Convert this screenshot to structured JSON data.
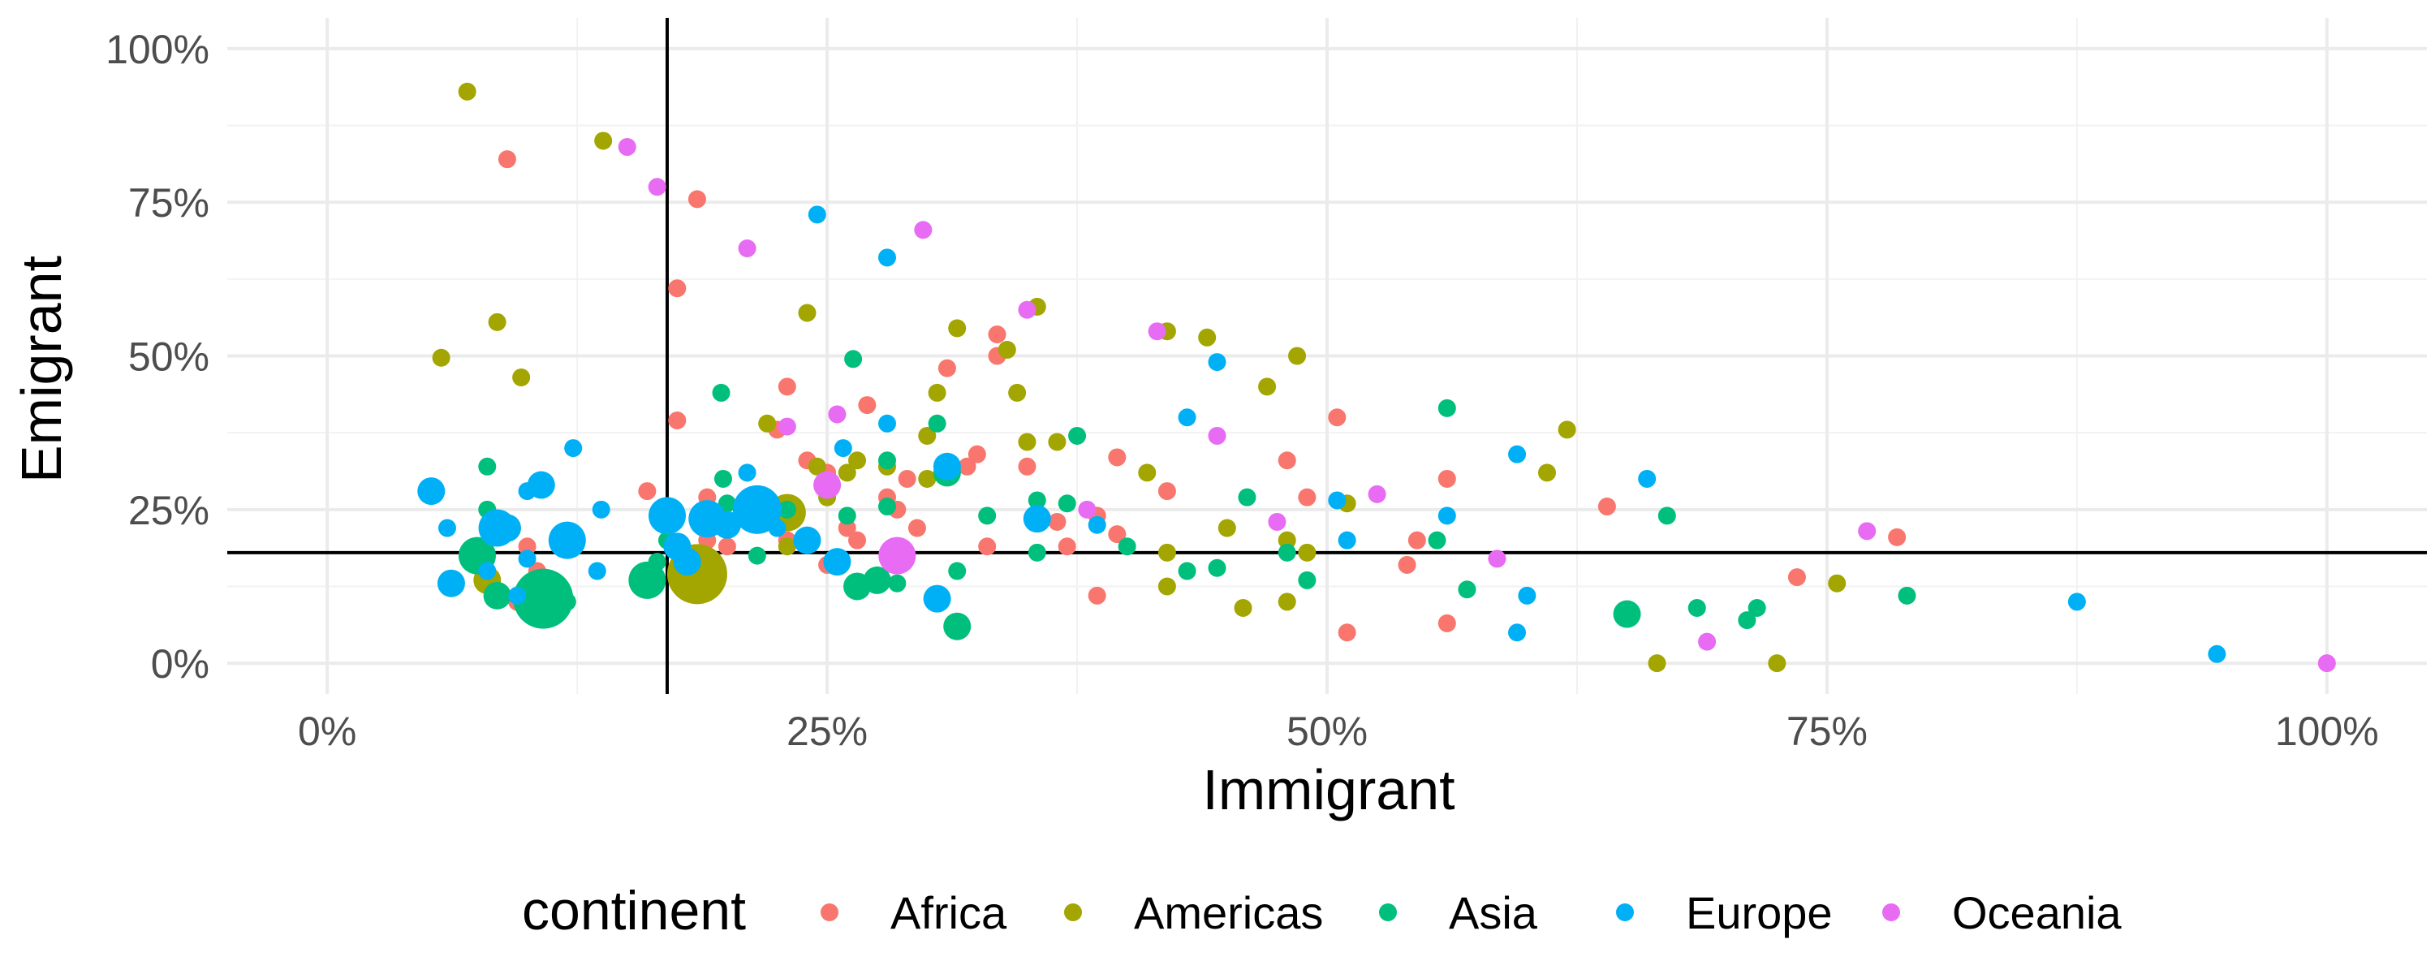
{
  "chart_data": {
    "type": "scatter",
    "xlabel": "Immigrant",
    "ylabel": "Emigrant",
    "xlim": [
      -0.05,
      1.05
    ],
    "ylim": [
      -0.05,
      1.05
    ],
    "x_ticks": [
      0,
      0.25,
      0.5,
      0.75,
      1.0
    ],
    "x_tick_labels": [
      "0%",
      "25%",
      "50%",
      "75%",
      "100%"
    ],
    "y_ticks": [
      0,
      0.25,
      0.5,
      0.75,
      1.0
    ],
    "y_tick_labels": [
      "0%",
      "25%",
      "50%",
      "75%",
      "100%"
    ],
    "grid": true,
    "reference_lines": {
      "vertical_x": 0.17,
      "horizontal_y": 0.18
    },
    "legend": {
      "title": "continent",
      "placement": "bottom",
      "entries": [
        {
          "name": "Africa",
          "color": "#F8766D"
        },
        {
          "name": "Americas",
          "color": "#A3A500"
        },
        {
          "name": "Asia",
          "color": "#00BF7D"
        },
        {
          "name": "Europe",
          "color": "#00B0F6"
        },
        {
          "name": "Oceania",
          "color": "#E76BF3"
        }
      ]
    },
    "series": [
      {
        "name": "Africa",
        "color": "#F8766D",
        "points": [
          [
            0.09,
            0.82,
            1
          ],
          [
            0.185,
            0.755,
            1
          ],
          [
            0.175,
            0.61,
            1
          ],
          [
            0.175,
            0.395,
            1
          ],
          [
            0.16,
            0.28,
            1
          ],
          [
            0.19,
            0.27,
            1
          ],
          [
            0.23,
            0.45,
            1
          ],
          [
            0.225,
            0.38,
            1
          ],
          [
            0.24,
            0.33,
            1
          ],
          [
            0.25,
            0.31,
            1
          ],
          [
            0.27,
            0.42,
            1
          ],
          [
            0.29,
            0.3,
            1
          ],
          [
            0.31,
            0.48,
            1
          ],
          [
            0.325,
            0.34,
            1
          ],
          [
            0.335,
            0.5,
            1
          ],
          [
            0.335,
            0.535,
            1
          ],
          [
            0.35,
            0.32,
            1
          ],
          [
            0.28,
            0.27,
            1
          ],
          [
            0.285,
            0.25,
            1
          ],
          [
            0.295,
            0.22,
            1
          ],
          [
            0.23,
            0.2,
            1
          ],
          [
            0.25,
            0.16,
            1
          ],
          [
            0.265,
            0.2,
            1
          ],
          [
            0.33,
            0.19,
            1
          ],
          [
            0.365,
            0.23,
            1
          ],
          [
            0.37,
            0.19,
            1
          ],
          [
            0.385,
            0.24,
            1
          ],
          [
            0.395,
            0.335,
            1
          ],
          [
            0.395,
            0.21,
            1
          ],
          [
            0.385,
            0.11,
            1
          ],
          [
            0.42,
            0.28,
            1
          ],
          [
            0.48,
            0.33,
            1
          ],
          [
            0.49,
            0.27,
            1
          ],
          [
            0.505,
            0.4,
            1
          ],
          [
            0.51,
            0.05,
            1
          ],
          [
            0.54,
            0.16,
            1
          ],
          [
            0.545,
            0.2,
            1
          ],
          [
            0.56,
            0.3,
            1
          ],
          [
            0.56,
            0.065,
            1
          ],
          [
            0.64,
            0.255,
            1
          ],
          [
            0.735,
            0.14,
            1
          ],
          [
            0.785,
            0.205,
            1
          ],
          [
            0.1,
            0.19,
            1
          ],
          [
            0.105,
            0.15,
            1
          ],
          [
            0.095,
            0.1,
            1
          ],
          [
            0.2,
            0.19,
            1
          ],
          [
            0.19,
            0.2,
            1
          ],
          [
            0.26,
            0.22,
            1
          ],
          [
            0.32,
            0.32,
            1
          ]
        ]
      },
      {
        "name": "Americas",
        "color": "#A3A500",
        "points": [
          [
            0.07,
            0.93,
            1
          ],
          [
            0.138,
            0.85,
            1
          ],
          [
            0.085,
            0.555,
            1
          ],
          [
            0.057,
            0.497,
            1
          ],
          [
            0.097,
            0.465,
            1
          ],
          [
            0.09,
            0.22,
            2
          ],
          [
            0.08,
            0.135,
            2
          ],
          [
            0.185,
            0.145,
            5
          ],
          [
            0.23,
            0.245,
            3
          ],
          [
            0.24,
            0.57,
            1
          ],
          [
            0.22,
            0.39,
            1
          ],
          [
            0.245,
            0.32,
            1
          ],
          [
            0.26,
            0.31,
            1
          ],
          [
            0.265,
            0.33,
            1
          ],
          [
            0.3,
            0.37,
            1
          ],
          [
            0.305,
            0.44,
            1
          ],
          [
            0.315,
            0.545,
            1
          ],
          [
            0.34,
            0.51,
            1
          ],
          [
            0.345,
            0.44,
            1
          ],
          [
            0.35,
            0.36,
            1
          ],
          [
            0.355,
            0.58,
            1
          ],
          [
            0.365,
            0.36,
            1
          ],
          [
            0.41,
            0.31,
            1
          ],
          [
            0.42,
            0.54,
            1
          ],
          [
            0.44,
            0.53,
            1
          ],
          [
            0.47,
            0.45,
            1
          ],
          [
            0.485,
            0.5,
            1
          ],
          [
            0.48,
            0.2,
            1
          ],
          [
            0.49,
            0.18,
            1
          ],
          [
            0.42,
            0.18,
            1
          ],
          [
            0.42,
            0.125,
            1
          ],
          [
            0.45,
            0.22,
            1
          ],
          [
            0.458,
            0.09,
            1
          ],
          [
            0.48,
            0.1,
            1
          ],
          [
            0.51,
            0.26,
            1
          ],
          [
            0.61,
            0.31,
            1
          ],
          [
            0.62,
            0.38,
            1
          ],
          [
            0.665,
            0.0,
            1
          ],
          [
            0.725,
            0.0,
            1
          ],
          [
            0.755,
            0.13,
            1
          ],
          [
            0.23,
            0.19,
            1
          ],
          [
            0.25,
            0.27,
            1
          ],
          [
            0.3,
            0.3,
            1
          ],
          [
            0.28,
            0.32,
            1
          ]
        ]
      },
      {
        "name": "Asia",
        "color": "#00BF7D",
        "points": [
          [
            0.08,
            0.32,
            1
          ],
          [
            0.08,
            0.25,
            1
          ],
          [
            0.075,
            0.175,
            3
          ],
          [
            0.085,
            0.11,
            2
          ],
          [
            0.108,
            0.105,
            5
          ],
          [
            0.12,
            0.1,
            1
          ],
          [
            0.16,
            0.135,
            3
          ],
          [
            0.165,
            0.165,
            1
          ],
          [
            0.17,
            0.2,
            1
          ],
          [
            0.198,
            0.3,
            1
          ],
          [
            0.197,
            0.44,
            1
          ],
          [
            0.2,
            0.26,
            1
          ],
          [
            0.215,
            0.175,
            1
          ],
          [
            0.23,
            0.25,
            1
          ],
          [
            0.26,
            0.24,
            1
          ],
          [
            0.263,
            0.495,
            1
          ],
          [
            0.265,
            0.125,
            2
          ],
          [
            0.275,
            0.135,
            2
          ],
          [
            0.285,
            0.13,
            1
          ],
          [
            0.28,
            0.255,
            1
          ],
          [
            0.28,
            0.33,
            1
          ],
          [
            0.305,
            0.39,
            1
          ],
          [
            0.31,
            0.31,
            2
          ],
          [
            0.315,
            0.06,
            2
          ],
          [
            0.315,
            0.15,
            1
          ],
          [
            0.33,
            0.24,
            1
          ],
          [
            0.355,
            0.18,
            1
          ],
          [
            0.355,
            0.265,
            1
          ],
          [
            0.37,
            0.26,
            1
          ],
          [
            0.375,
            0.37,
            1
          ],
          [
            0.4,
            0.19,
            1
          ],
          [
            0.43,
            0.15,
            1
          ],
          [
            0.445,
            0.155,
            1
          ],
          [
            0.46,
            0.27,
            1
          ],
          [
            0.48,
            0.18,
            1
          ],
          [
            0.49,
            0.135,
            1
          ],
          [
            0.555,
            0.2,
            1
          ],
          [
            0.56,
            0.415,
            1
          ],
          [
            0.57,
            0.12,
            1
          ],
          [
            0.65,
            0.08,
            2
          ],
          [
            0.67,
            0.24,
            1
          ],
          [
            0.685,
            0.09,
            1
          ],
          [
            0.71,
            0.07,
            1
          ],
          [
            0.715,
            0.09,
            1
          ],
          [
            0.79,
            0.11,
            1
          ]
        ]
      },
      {
        "name": "Europe",
        "color": "#00B0F6",
        "points": [
          [
            0.052,
            0.28,
            2
          ],
          [
            0.06,
            0.22,
            1
          ],
          [
            0.062,
            0.13,
            2
          ],
          [
            0.08,
            0.15,
            1
          ],
          [
            0.085,
            0.22,
            3
          ],
          [
            0.09,
            0.22,
            2
          ],
          [
            0.1,
            0.28,
            1
          ],
          [
            0.107,
            0.29,
            2
          ],
          [
            0.1,
            0.17,
            1
          ],
          [
            0.095,
            0.11,
            1
          ],
          [
            0.12,
            0.2,
            3
          ],
          [
            0.123,
            0.35,
            1
          ],
          [
            0.135,
            0.15,
            1
          ],
          [
            0.137,
            0.25,
            1
          ],
          [
            0.17,
            0.24,
            3
          ],
          [
            0.175,
            0.19,
            2
          ],
          [
            0.18,
            0.165,
            2
          ],
          [
            0.19,
            0.235,
            3
          ],
          [
            0.2,
            0.225,
            2
          ],
          [
            0.21,
            0.31,
            1
          ],
          [
            0.215,
            0.25,
            4
          ],
          [
            0.225,
            0.22,
            1
          ],
          [
            0.24,
            0.2,
            2
          ],
          [
            0.245,
            0.73,
            1
          ],
          [
            0.255,
            0.165,
            2
          ],
          [
            0.258,
            0.35,
            1
          ],
          [
            0.28,
            0.66,
            1
          ],
          [
            0.28,
            0.39,
            1
          ],
          [
            0.305,
            0.105,
            2
          ],
          [
            0.31,
            0.32,
            2
          ],
          [
            0.355,
            0.235,
            2
          ],
          [
            0.385,
            0.225,
            1
          ],
          [
            0.43,
            0.4,
            1
          ],
          [
            0.445,
            0.49,
            1
          ],
          [
            0.505,
            0.265,
            1
          ],
          [
            0.51,
            0.2,
            1
          ],
          [
            0.56,
            0.24,
            1
          ],
          [
            0.595,
            0.34,
            1
          ],
          [
            0.595,
            0.05,
            1
          ],
          [
            0.6,
            0.11,
            1
          ],
          [
            0.66,
            0.3,
            1
          ],
          [
            0.875,
            0.1,
            1
          ],
          [
            0.945,
            0.015,
            1
          ]
        ]
      },
      {
        "name": "Oceania",
        "color": "#E76BF3",
        "points": [
          [
            0.15,
            0.84,
            1
          ],
          [
            0.165,
            0.775,
            1
          ],
          [
            0.21,
            0.675,
            1
          ],
          [
            0.298,
            0.705,
            1
          ],
          [
            0.35,
            0.575,
            1
          ],
          [
            0.415,
            0.54,
            1
          ],
          [
            0.23,
            0.385,
            1
          ],
          [
            0.255,
            0.405,
            1
          ],
          [
            0.25,
            0.29,
            2
          ],
          [
            0.285,
            0.175,
            3
          ],
          [
            0.38,
            0.25,
            1
          ],
          [
            0.445,
            0.37,
            1
          ],
          [
            0.475,
            0.23,
            1
          ],
          [
            0.525,
            0.275,
            1
          ],
          [
            0.585,
            0.17,
            1
          ],
          [
            0.69,
            0.035,
            1
          ],
          [
            0.77,
            0.215,
            1
          ],
          [
            1.0,
            0.0,
            1
          ]
        ]
      }
    ]
  }
}
